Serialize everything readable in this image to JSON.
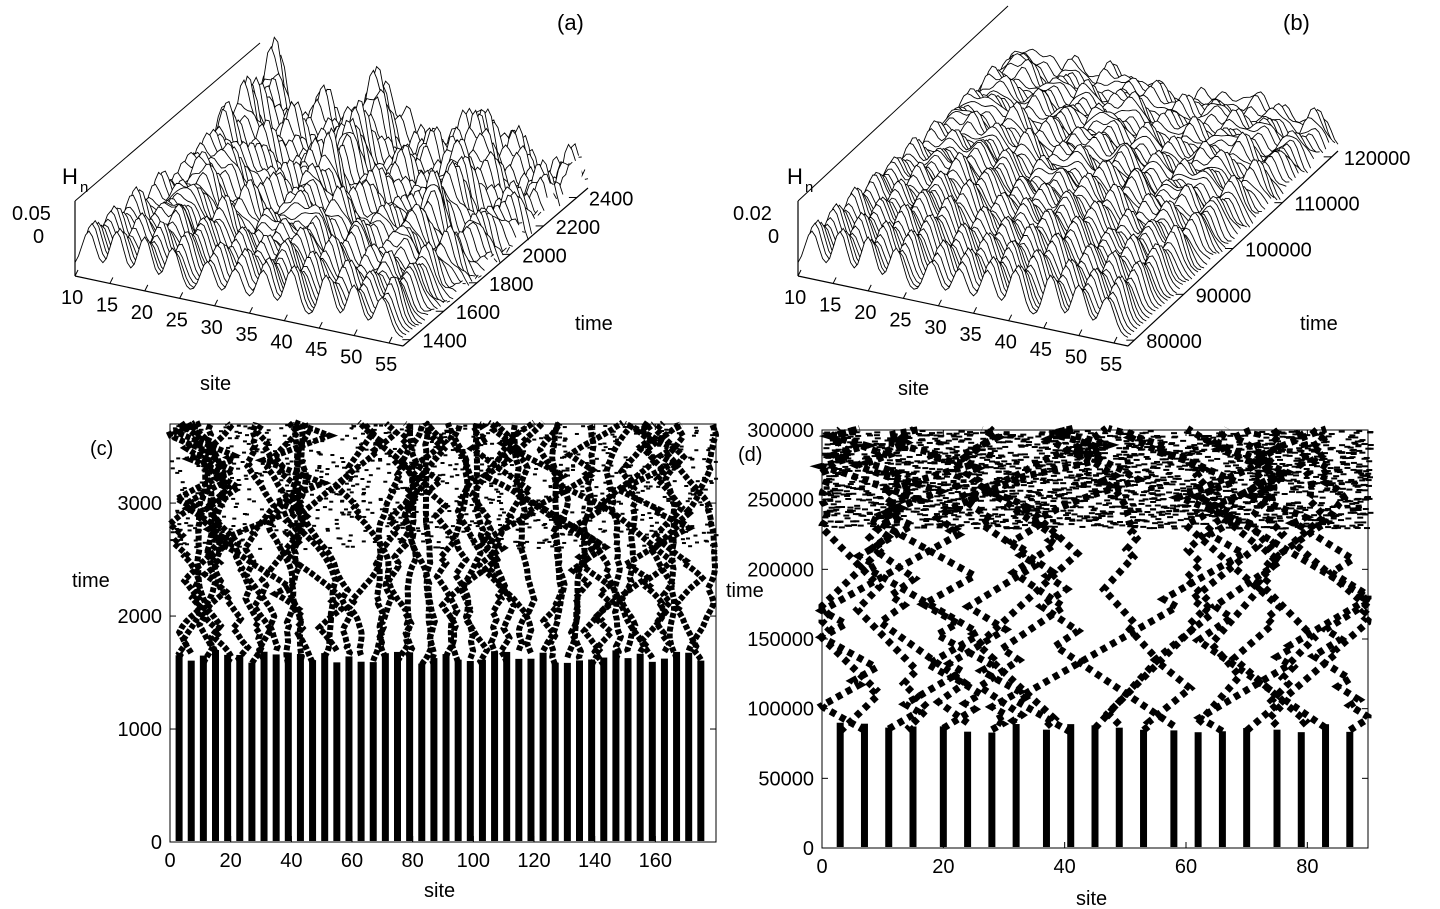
{
  "chart_data": [
    {
      "panel": "(a)",
      "type": "surface",
      "zlabel_main": "H",
      "zlabel_sub": "n",
      "xlabel": "site",
      "ylabel": "time",
      "x_ticks": [
        "10",
        "15",
        "20",
        "25",
        "30",
        "35",
        "40",
        "45",
        "50",
        "55"
      ],
      "y_ticks": [
        "1400",
        "1600",
        "1800",
        "2000",
        "2200",
        "2400"
      ],
      "z_ticks": [
        "0.05",
        "0"
      ],
      "xlim": [
        10,
        57
      ],
      "ylim": [
        1400,
        2500
      ],
      "ridge_sites": [
        12,
        16,
        20,
        24,
        29,
        33,
        37,
        41,
        46,
        50,
        54
      ],
      "num_traces": 60
    },
    {
      "panel": "(b)",
      "type": "surface",
      "zlabel_main": "H",
      "zlabel_sub": "n",
      "xlabel": "site",
      "ylabel": "time",
      "x_ticks": [
        "10",
        "15",
        "20",
        "25",
        "30",
        "35",
        "40",
        "45",
        "50",
        "55"
      ],
      "y_ticks": [
        "80000",
        "90000",
        "100000",
        "110000",
        "120000"
      ],
      "z_ticks": [
        "0.02",
        "0"
      ],
      "xlim": [
        10,
        57
      ],
      "ylim": [
        80000,
        120000
      ],
      "ridge_sites": [
        12,
        16,
        20,
        24,
        29,
        33,
        37,
        41,
        46,
        50,
        54
      ],
      "num_traces": 70
    },
    {
      "panel": "(c)",
      "type": "spacetime",
      "xlabel": "site",
      "ylabel": "time",
      "xlim": [
        0,
        180
      ],
      "ylim": [
        0,
        3700
      ],
      "x_ticks": [
        "0",
        "20",
        "40",
        "60",
        "80",
        "100",
        "120",
        "140",
        "160"
      ],
      "y_ticks": [
        "0",
        "1000",
        "2000",
        "3000"
      ],
      "breather_sites": [
        3,
        7,
        11,
        15,
        19,
        23,
        27,
        31,
        35,
        39,
        43,
        47,
        51,
        55,
        59,
        63,
        67,
        71,
        75,
        79,
        83,
        87,
        91,
        95,
        99,
        103,
        107,
        111,
        115,
        119,
        123,
        127,
        131,
        135,
        139,
        143,
        147,
        151,
        155,
        159,
        163,
        167,
        171,
        175
      ],
      "onset_time": 1700,
      "crowding_time": 2600
    },
    {
      "panel": "(d)",
      "type": "spacetime",
      "xlabel": "site",
      "ylabel": "time",
      "xlim": [
        0,
        90
      ],
      "ylim": [
        0,
        300000
      ],
      "x_ticks": [
        "0",
        "20",
        "40",
        "60",
        "80"
      ],
      "y_ticks": [
        "0",
        "50000",
        "100000",
        "150000",
        "200000",
        "250000",
        "300000"
      ],
      "breather_sites": [
        3,
        7,
        11,
        15,
        20,
        24,
        28,
        32,
        37,
        41,
        45,
        49,
        53,
        58,
        62,
        66,
        70,
        75,
        79,
        83,
        87
      ],
      "onset_time": 90000,
      "zigzag_end_time": 230000
    }
  ]
}
